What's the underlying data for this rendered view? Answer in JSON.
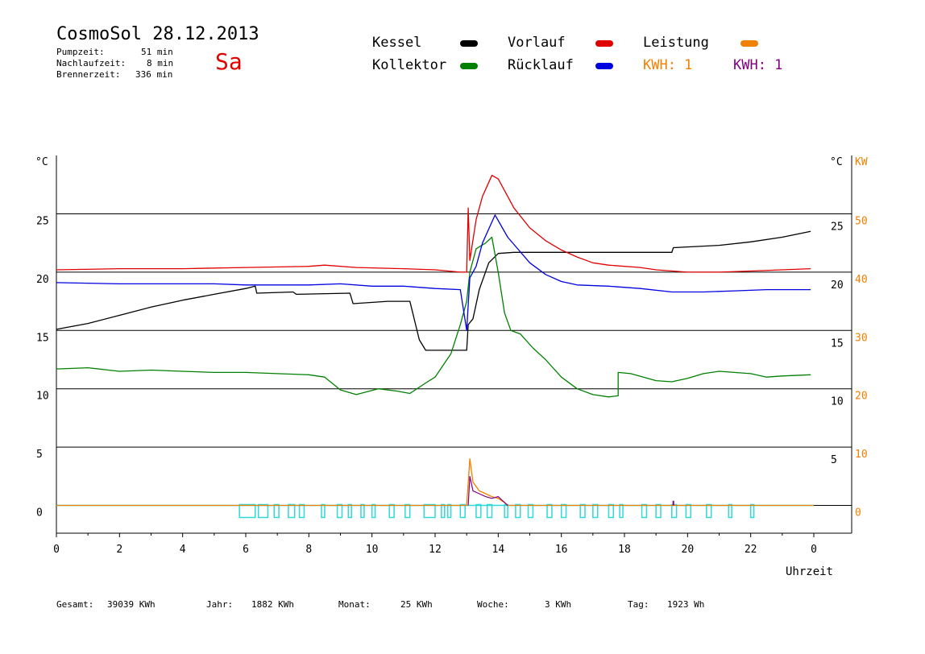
{
  "header": {
    "title": "CosmoSol 28.12.2013",
    "day": "Sa",
    "pump_label": "Pumpzeit:",
    "pump_value": "51 min",
    "nachlauf_label": "Nachlaufzeit:",
    "nachlauf_value": "8 min",
    "brenner_label": "Brennerzeit:",
    "brenner_value": "336 min"
  },
  "legend": {
    "kessel": "Kessel",
    "kollektor": "Kollektor",
    "vorlauf": "Vorlauf",
    "ruecklauf": "Rücklauf",
    "leistung": "Leistung",
    "kwh1": "KWH: 1",
    "kwh2": "KWH: 1"
  },
  "footer": {
    "gesamt_label": "Gesamt:",
    "gesamt_value": "39039 KWh",
    "jahr_label": "Jahr:",
    "jahr_value": "1882 KWh",
    "monat_label": "Monat:",
    "monat_value": "25 KWh",
    "woche_label": "Woche:",
    "woche_value": "3 KWh",
    "tag_label": "Tag:",
    "tag_value": "1923 Wh"
  },
  "colors": {
    "kessel": "#000000",
    "kollektor": "#008000",
    "vorlauf": "#e00000",
    "ruecklauf": "#0000e0",
    "leistung": "#f08000",
    "kwh_purple": "#800080",
    "pump": "#30d8d8"
  },
  "chart_data": {
    "type": "line",
    "x_label": "Uhrzeit",
    "x_ticks": [
      "0",
      "2",
      "4",
      "6",
      "8",
      "10",
      "12",
      "14",
      "16",
      "18",
      "20",
      "22",
      "0"
    ],
    "x_range": [
      0,
      24
    ],
    "left_unit": "°C",
    "right_unit_temp": "°C",
    "right_unit_power": "KW",
    "temp_ticks_left": [
      "25",
      "20",
      "15",
      "10",
      "5",
      "0"
    ],
    "temp_ticks_right": [
      "25",
      "20",
      "15",
      "10",
      "5"
    ],
    "power_ticks": [
      "50",
      "40",
      "30",
      "20",
      "10",
      "0"
    ],
    "y_range_temp": [
      -2.5,
      30
    ],
    "y_range_power": [
      0,
      50
    ],
    "grid_lines_temp": [
      25,
      20,
      15,
      10,
      5,
      0
    ],
    "series": [
      {
        "name": "Kessel",
        "key": "kessel",
        "points": [
          [
            0,
            15.1
          ],
          [
            1,
            15.6
          ],
          [
            2,
            16.3
          ],
          [
            3,
            17.0
          ],
          [
            4,
            17.6
          ],
          [
            5,
            18.1
          ],
          [
            6,
            18.6
          ],
          [
            6.3,
            18.8
          ],
          [
            6.35,
            18.2
          ],
          [
            7.5,
            18.3
          ],
          [
            7.6,
            18.1
          ],
          [
            9.3,
            18.2
          ],
          [
            9.4,
            17.3
          ],
          [
            10.5,
            17.5
          ],
          [
            11.2,
            17.5
          ],
          [
            11.5,
            14.2
          ],
          [
            11.7,
            13.3
          ],
          [
            13.0,
            13.3
          ],
          [
            13.05,
            15.5
          ],
          [
            13.2,
            16.0
          ],
          [
            13.4,
            18.5
          ],
          [
            13.7,
            20.8
          ],
          [
            14.0,
            21.6
          ],
          [
            14.5,
            21.7
          ],
          [
            16.5,
            21.7
          ],
          [
            19.5,
            21.7
          ],
          [
            19.55,
            22.1
          ],
          [
            21.0,
            22.3
          ],
          [
            22.0,
            22.6
          ],
          [
            23.0,
            23.0
          ],
          [
            23.9,
            23.5
          ]
        ]
      },
      {
        "name": "Kollektor",
        "key": "kollektor",
        "points": [
          [
            0,
            11.7
          ],
          [
            1,
            11.8
          ],
          [
            2,
            11.5
          ],
          [
            3,
            11.6
          ],
          [
            4,
            11.5
          ],
          [
            5,
            11.4
          ],
          [
            6,
            11.4
          ],
          [
            7,
            11.3
          ],
          [
            8,
            11.2
          ],
          [
            8.5,
            11.0
          ],
          [
            9,
            9.9
          ],
          [
            9.5,
            9.5
          ],
          [
            10.2,
            10.0
          ],
          [
            10.8,
            9.8
          ],
          [
            11.2,
            9.6
          ],
          [
            11.7,
            10.5
          ],
          [
            12.0,
            11.0
          ],
          [
            12.5,
            13.0
          ],
          [
            12.8,
            15.5
          ],
          [
            13.0,
            17.5
          ],
          [
            13.1,
            20.0
          ],
          [
            13.3,
            22.0
          ],
          [
            13.6,
            22.5
          ],
          [
            13.8,
            23.0
          ],
          [
            14.0,
            20.0
          ],
          [
            14.2,
            16.5
          ],
          [
            14.4,
            15.0
          ],
          [
            14.7,
            14.7
          ],
          [
            15.1,
            13.5
          ],
          [
            15.3,
            13.0
          ],
          [
            15.5,
            12.5
          ],
          [
            16.0,
            11.0
          ],
          [
            16.5,
            10.0
          ],
          [
            17.0,
            9.5
          ],
          [
            17.5,
            9.3
          ],
          [
            17.8,
            9.4
          ],
          [
            17.8,
            11.4
          ],
          [
            18.2,
            11.3
          ],
          [
            19.0,
            10.7
          ],
          [
            19.5,
            10.6
          ],
          [
            20.0,
            10.9
          ],
          [
            20.5,
            11.3
          ],
          [
            21.0,
            11.5
          ],
          [
            22.0,
            11.3
          ],
          [
            22.5,
            11.0
          ],
          [
            23.0,
            11.1
          ],
          [
            23.9,
            11.2
          ]
        ]
      },
      {
        "name": "Vorlauf",
        "key": "vorlauf",
        "points": [
          [
            0,
            20.2
          ],
          [
            2,
            20.3
          ],
          [
            4,
            20.3
          ],
          [
            6,
            20.4
          ],
          [
            8,
            20.5
          ],
          [
            8.5,
            20.6
          ],
          [
            9.5,
            20.4
          ],
          [
            11,
            20.3
          ],
          [
            12,
            20.2
          ],
          [
            12.8,
            20.0
          ],
          [
            13.0,
            20.0
          ],
          [
            13.05,
            25.5
          ],
          [
            13.1,
            21.0
          ],
          [
            13.3,
            24.5
          ],
          [
            13.5,
            26.5
          ],
          [
            13.8,
            28.3
          ],
          [
            14.0,
            28.0
          ],
          [
            14.5,
            25.5
          ],
          [
            15.0,
            23.8
          ],
          [
            15.5,
            22.7
          ],
          [
            16.0,
            21.9
          ],
          [
            16.5,
            21.3
          ],
          [
            17.0,
            20.8
          ],
          [
            17.5,
            20.6
          ],
          [
            18.5,
            20.4
          ],
          [
            19.0,
            20.2
          ],
          [
            20.0,
            20.0
          ],
          [
            21.0,
            20.0
          ],
          [
            22.0,
            20.1
          ],
          [
            23.0,
            20.2
          ],
          [
            23.9,
            20.3
          ]
        ]
      },
      {
        "name": "Rücklauf",
        "key": "ruecklauf",
        "points": [
          [
            0,
            19.1
          ],
          [
            2,
            19.0
          ],
          [
            4,
            19.0
          ],
          [
            5,
            19.0
          ],
          [
            6,
            18.9
          ],
          [
            8,
            18.9
          ],
          [
            9,
            19.0
          ],
          [
            10,
            18.8
          ],
          [
            11,
            18.8
          ],
          [
            12,
            18.6
          ],
          [
            12.8,
            18.5
          ],
          [
            13.0,
            15.0
          ],
          [
            13.1,
            19.5
          ],
          [
            13.3,
            20.5
          ],
          [
            13.5,
            22.5
          ],
          [
            13.9,
            24.9
          ],
          [
            14.3,
            23.0
          ],
          [
            15.0,
            20.8
          ],
          [
            15.5,
            19.8
          ],
          [
            16.0,
            19.2
          ],
          [
            16.5,
            18.9
          ],
          [
            17.5,
            18.8
          ],
          [
            18.5,
            18.6
          ],
          [
            19.5,
            18.3
          ],
          [
            20.5,
            18.3
          ],
          [
            21.5,
            18.4
          ],
          [
            22.5,
            18.5
          ],
          [
            23.9,
            18.5
          ]
        ]
      },
      {
        "name": "Leistung",
        "key": "leistung",
        "axis": "power",
        "points": [
          [
            0,
            0
          ],
          [
            13.0,
            0
          ],
          [
            13.1,
            8
          ],
          [
            13.2,
            4
          ],
          [
            13.4,
            2.5
          ],
          [
            13.6,
            2
          ],
          [
            13.8,
            1.5
          ],
          [
            14.0,
            1.2
          ],
          [
            14.2,
            0.5
          ],
          [
            14.3,
            0
          ],
          [
            24,
            0
          ]
        ]
      }
    ]
  }
}
